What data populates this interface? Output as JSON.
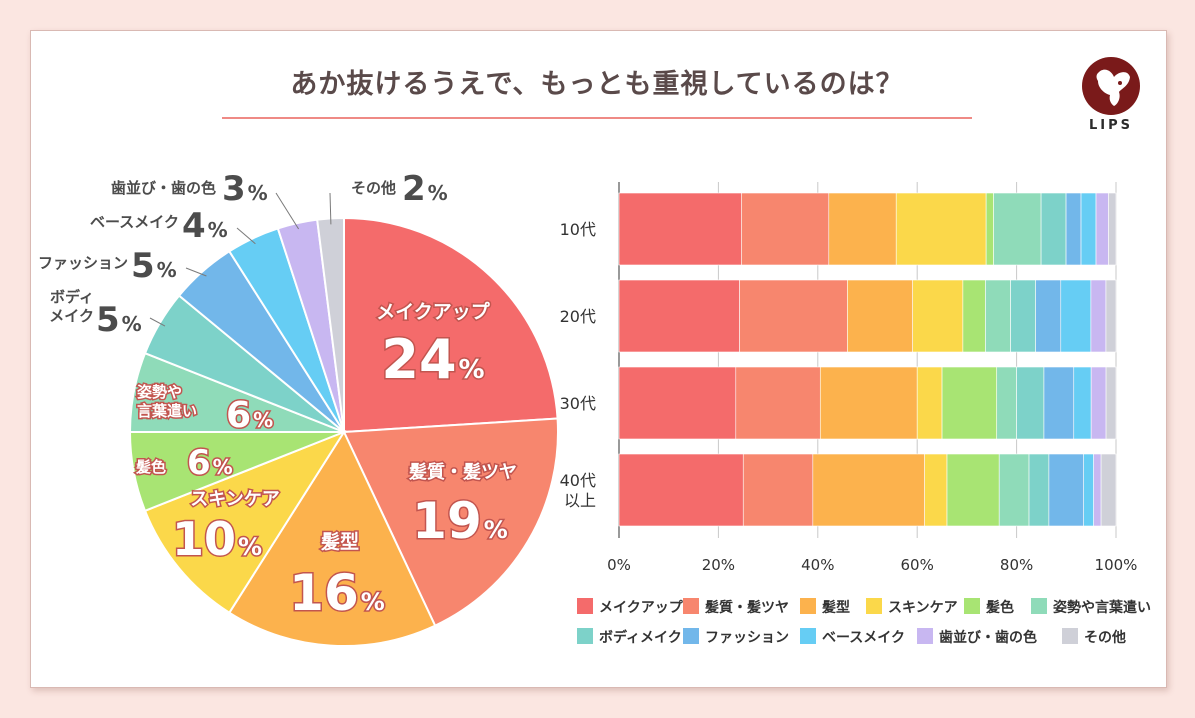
{
  "title": "あか抜けるうえで、もっとも重視しているのは？",
  "brand": {
    "name": "LIPS"
  },
  "colors": {
    "background": "#fbe6e1",
    "title_rule": "#ef8a85",
    "categories": [
      "#f46b6b",
      "#f7866e",
      "#fcb24d",
      "#fbd84a",
      "#a8e473",
      "#8fdbb9",
      "#7dd2c9",
      "#72b7ea",
      "#66cdf4",
      "#c8b7f1",
      "#cfd0d8"
    ]
  },
  "chart_data": [
    {
      "type": "pie",
      "title": "あか抜けるうえで、もっとも重視しているのは？",
      "categories": [
        "メイクアップ",
        "髪質・髪ツヤ",
        "髪型",
        "スキンケア",
        "髪色",
        "姿勢や言葉遣い",
        "ボディメイク",
        "ファッション",
        "ベースメイク",
        "歯並び・歯の色",
        "その他"
      ],
      "values": [
        24,
        19,
        16,
        10,
        6,
        6,
        5,
        5,
        4,
        3,
        2
      ],
      "unit": "%",
      "inside_labels": [
        {
          "index": 0,
          "lines": [
            "メイクアップ"
          ],
          "value": "24"
        },
        {
          "index": 1,
          "lines": [
            "髪質・髪ツヤ"
          ],
          "value": "19"
        },
        {
          "index": 2,
          "lines": [
            "髪型"
          ],
          "value": "16"
        },
        {
          "index": 3,
          "lines": [
            "スキンケア"
          ],
          "value": "10"
        },
        {
          "index": 4,
          "lines": [
            "髪色"
          ],
          "value": "6"
        },
        {
          "index": 5,
          "lines": [
            "姿勢や",
            "言葉遣い"
          ],
          "value": "6"
        }
      ],
      "outside_labels": [
        {
          "index": 6,
          "lines": [
            "ボディ",
            "メイク"
          ],
          "value": "5"
        },
        {
          "index": 7,
          "lines": [
            "ファッション"
          ],
          "value": "5"
        },
        {
          "index": 8,
          "lines": [
            "ベースメイク"
          ],
          "value": "4"
        },
        {
          "index": 9,
          "lines": [
            "歯並び・歯の色"
          ],
          "value": "3"
        },
        {
          "index": 10,
          "lines": [
            "その他"
          ],
          "value": "2"
        }
      ]
    },
    {
      "type": "bar",
      "orientation": "horizontal",
      "stacked": true,
      "normalized": true,
      "categories": [
        [
          "10代"
        ],
        [
          "20代"
        ],
        [
          "30代"
        ],
        [
          "40代",
          "以上"
        ]
      ],
      "series": [
        {
          "name": "メイクアップ",
          "values": [
            24.5,
            24,
            23.5,
            25
          ]
        },
        {
          "name": "髪質・髪ツヤ",
          "values": [
            17.5,
            21.5,
            17,
            14
          ]
        },
        {
          "name": "髪型",
          "values": [
            13.5,
            13,
            19.5,
            22.5
          ]
        },
        {
          "name": "スキンケア",
          "values": [
            18,
            10,
            5,
            4.5
          ]
        },
        {
          "name": "髪色",
          "values": [
            1.5,
            4.5,
            11,
            10.5
          ]
        },
        {
          "name": "姿勢や言葉遣い",
          "values": [
            9.5,
            5,
            4,
            6
          ]
        },
        {
          "name": "ボディメイク",
          "values": [
            5,
            5,
            5.5,
            4
          ]
        },
        {
          "name": "ファッション",
          "values": [
            3,
            5,
            6,
            7
          ]
        },
        {
          "name": "ベースメイク",
          "values": [
            3,
            6,
            3.5,
            2
          ]
        },
        {
          "name": "歯並び・歯の色",
          "values": [
            2.5,
            3,
            3,
            1.5
          ]
        },
        {
          "name": "その他",
          "values": [
            1.5,
            2,
            2,
            3
          ]
        }
      ],
      "xlim": [
        0,
        100
      ],
      "xticks": [
        "0%",
        "20%",
        "40%",
        "60%",
        "80%",
        "100%"
      ],
      "grid": true,
      "legend": {
        "position": "bottom",
        "rows": [
          [
            "メイクアップ",
            "髪質・髪ツヤ",
            "髪型",
            "スキンケア",
            "髪色",
            "姿勢や言葉遣い"
          ],
          [
            "ボディメイク",
            "ファッション",
            "ベースメイク",
            "歯並び・歯の色",
            "その他"
          ]
        ]
      }
    }
  ]
}
